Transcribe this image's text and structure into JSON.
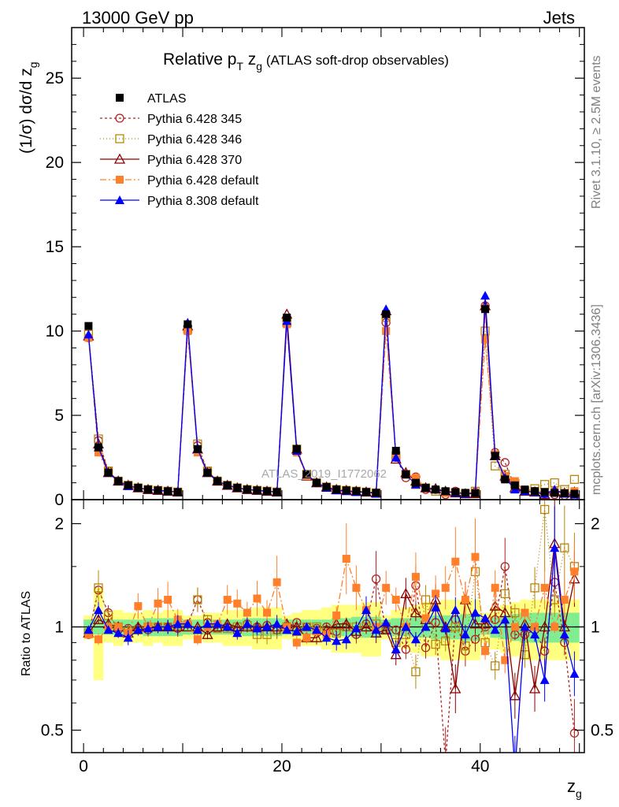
{
  "header": {
    "left": "13000 GeV pp",
    "right": "Jets"
  },
  "side_labels": {
    "top": "Rivet 3.1.10, ≥ 2.5M events",
    "bottom": "mcplots.cern.ch [arXiv:1306.3436]"
  },
  "chart_data": [
    {
      "type": "line",
      "title": "Relative p_T z_g (ATLAS soft-drop observables)",
      "title_main": "Relative p",
      "title_sub": "T",
      "title_var": " z",
      "title_var_sub": "g",
      "title_rest": " (ATLAS soft-drop observables)",
      "ylabel": "(1/σ) dσ/d z",
      "ylabel_sub": "g",
      "watermark": "ATLAS_2019_I1772062",
      "ylim": [
        0,
        28
      ],
      "xlim": [
        -1.2,
        50.5
      ],
      "x_ticks": [
        0,
        20,
        40
      ],
      "y_ticks": [
        0,
        5,
        10,
        15,
        20,
        25
      ],
      "y_tick_labels": [
        "0",
        "5",
        "10",
        "15",
        "20",
        "25"
      ],
      "legend_position": "top-left",
      "x": [
        0.5,
        1.5,
        2.5,
        3.5,
        4.5,
        5.5,
        6.5,
        7.5,
        8.5,
        9.5,
        10.5,
        11.5,
        12.5,
        13.5,
        14.5,
        15.5,
        16.5,
        17.5,
        18.5,
        19.5,
        20.5,
        21.5,
        22.5,
        23.5,
        24.5,
        25.5,
        26.5,
        27.5,
        28.5,
        29.5,
        30.5,
        31.5,
        32.5,
        33.5,
        34.5,
        35.5,
        36.5,
        37.5,
        38.5,
        39.5,
        40.5,
        41.5,
        42.5,
        43.5,
        44.5,
        45.5,
        46.5,
        47.5,
        48.5,
        49.5
      ],
      "series": [
        {
          "name": "ATLAS",
          "color": "#000000",
          "marker": "filled-square",
          "dash": "none",
          "values": [
            10.3,
            3.1,
            1.6,
            1.1,
            0.85,
            0.7,
            0.6,
            0.55,
            0.5,
            0.45,
            10.4,
            3.0,
            1.6,
            1.1,
            0.85,
            0.7,
            0.6,
            0.55,
            0.5,
            0.45,
            10.8,
            3.0,
            1.5,
            1.0,
            0.75,
            0.6,
            0.55,
            0.5,
            0.45,
            0.4,
            11.0,
            2.9,
            1.5,
            1.0,
            0.7,
            0.6,
            0.5,
            0.45,
            0.4,
            0.38,
            11.3,
            2.6,
            1.2,
            0.85,
            0.6,
            0.5,
            0.45,
            0.4,
            0.38,
            0.35
          ]
        },
        {
          "name": "Pythia 6.428 345",
          "color": "#b22222",
          "marker": "open-circle",
          "dash": "3,3",
          "values": [
            9.6,
            3.5,
            1.7,
            1.1,
            0.85,
            0.7,
            0.6,
            0.55,
            0.5,
            0.45,
            10.0,
            3.2,
            1.7,
            1.1,
            0.85,
            0.7,
            0.6,
            0.55,
            0.5,
            0.45,
            10.6,
            2.9,
            1.5,
            1.0,
            0.75,
            0.6,
            0.55,
            0.5,
            0.45,
            0.4,
            10.5,
            2.5,
            1.3,
            1.35,
            0.6,
            0.6,
            0.3,
            0.5,
            0.35,
            0.45,
            11.5,
            2.8,
            2.2,
            0.75,
            0.55,
            0.5,
            0.35,
            0.3,
            0.25,
            0.2
          ]
        },
        {
          "name": "Pythia 6.428 346",
          "color": "#b8860b",
          "marker": "open-square",
          "dash": "1,3",
          "values": [
            9.8,
            3.6,
            1.7,
            1.1,
            0.85,
            0.7,
            0.6,
            0.55,
            0.5,
            0.45,
            10.1,
            3.3,
            1.7,
            1.1,
            0.85,
            0.7,
            0.6,
            0.55,
            0.5,
            0.45,
            10.5,
            3.0,
            1.5,
            1.0,
            0.75,
            0.6,
            0.55,
            0.5,
            0.45,
            0.4,
            10.8,
            2.6,
            1.5,
            0.9,
            0.7,
            0.5,
            0.45,
            0.4,
            0.35,
            0.5,
            10.0,
            2.0,
            1.5,
            0.95,
            0.5,
            0.65,
            0.9,
            1.0,
            0.6,
            1.2
          ]
        },
        {
          "name": "Pythia 6.428 370",
          "color": "#8b0000",
          "marker": "open-triangle",
          "dash": "none",
          "values": [
            9.7,
            3.3,
            1.6,
            1.1,
            0.85,
            0.7,
            0.6,
            0.55,
            0.5,
            0.45,
            10.3,
            3.0,
            1.6,
            1.1,
            0.85,
            0.7,
            0.6,
            0.55,
            0.5,
            0.45,
            11.0,
            3.0,
            1.4,
            1.0,
            0.75,
            0.6,
            0.55,
            0.5,
            0.45,
            0.4,
            11.2,
            2.4,
            1.6,
            1.1,
            0.7,
            0.65,
            0.5,
            0.4,
            0.35,
            0.35,
            11.5,
            2.6,
            1.4,
            0.7,
            0.5,
            0.45,
            0.3,
            0.5,
            0.4,
            0.45
          ]
        },
        {
          "name": "Pythia 6.428 default",
          "color": "#ff7f2a",
          "marker": "filled-square",
          "dash": "8,3,2,3",
          "values": [
            9.6,
            2.8,
            1.6,
            1.1,
            0.85,
            0.7,
            0.6,
            0.55,
            0.5,
            0.45,
            10.0,
            2.8,
            1.6,
            1.1,
            0.85,
            0.7,
            0.6,
            0.55,
            0.5,
            0.45,
            10.4,
            2.8,
            1.4,
            1.0,
            0.75,
            0.6,
            0.55,
            0.5,
            0.45,
            0.4,
            10.0,
            2.5,
            1.5,
            1.3,
            0.7,
            0.6,
            0.4,
            0.4,
            0.4,
            0.4,
            9.5,
            2.7,
            1.4,
            1.1,
            0.5,
            0.5,
            0.45,
            0.5,
            0.4,
            0.5
          ]
        },
        {
          "name": "Pythia 8.308 default",
          "color": "#0000ff",
          "marker": "filled-triangle",
          "dash": "none",
          "values": [
            9.8,
            3.1,
            1.6,
            1.1,
            0.8,
            0.7,
            0.6,
            0.55,
            0.5,
            0.45,
            10.5,
            3.0,
            1.6,
            1.1,
            0.85,
            0.7,
            0.6,
            0.55,
            0.5,
            0.45,
            10.6,
            2.9,
            1.5,
            1.0,
            0.7,
            0.55,
            0.5,
            0.45,
            0.45,
            0.35,
            11.3,
            2.5,
            1.5,
            0.9,
            0.7,
            0.6,
            0.5,
            0.4,
            0.35,
            0.4,
            12.1,
            2.6,
            1.3,
            0.6,
            0.5,
            0.45,
            0.35,
            0.6,
            0.35,
            0.3
          ]
        }
      ]
    },
    {
      "type": "line",
      "ylabel": "Ratio to ATLAS",
      "xlabel": "z",
      "xlabel_sub": "g",
      "scale": "log",
      "ylim": [
        0.43,
        2.35
      ],
      "xlim": [
        -1.2,
        50.5
      ],
      "x_ticks": [
        0,
        20,
        40
      ],
      "y_ticks": [
        0.5,
        1,
        2
      ],
      "y_tick_labels": [
        "0.5",
        "1",
        "2"
      ],
      "band_inner": [
        0.05,
        0.05,
        0.05,
        0.05,
        0.05,
        0.05,
        0.06,
        0.06,
        0.06,
        0.06,
        0.05,
        0.05,
        0.05,
        0.05,
        0.05,
        0.05,
        0.06,
        0.06,
        0.06,
        0.06,
        0.05,
        0.05,
        0.05,
        0.05,
        0.05,
        0.06,
        0.06,
        0.07,
        0.07,
        0.07,
        0.05,
        0.06,
        0.06,
        0.07,
        0.07,
        0.08,
        0.08,
        0.08,
        0.09,
        0.09,
        0.05,
        0.07,
        0.08,
        0.09,
        0.1,
        0.1,
        0.1,
        0.1,
        0.1,
        0.1
      ],
      "band_outer": [
        0.08,
        0.3,
        0.1,
        0.12,
        0.1,
        0.1,
        0.12,
        0.1,
        0.12,
        0.12,
        0.08,
        0.08,
        0.1,
        0.1,
        0.12,
        0.12,
        0.12,
        0.14,
        0.14,
        0.14,
        0.08,
        0.1,
        0.12,
        0.12,
        0.14,
        0.16,
        0.16,
        0.16,
        0.18,
        0.18,
        0.08,
        0.12,
        0.14,
        0.16,
        0.18,
        0.18,
        0.2,
        0.2,
        0.2,
        0.2,
        0.1,
        0.14,
        0.16,
        0.18,
        0.2,
        0.2,
        0.2,
        0.2,
        0.2,
        0.2
      ],
      "series": [
        {
          "name": "Pythia 6.428 345",
          "color": "#b22222",
          "marker": "open-circle",
          "dash": "3,3",
          "values": [
            0.95,
            1.28,
            1.1,
            0.98,
            0.99,
            0.99,
            0.98,
            1.0,
            1.0,
            0.99,
            1.02,
            1.2,
            1.03,
            0.99,
            1.0,
            0.97,
            1.02,
            1.0,
            1.01,
            0.98,
            1.0,
            1.03,
            1.0,
            0.99,
            1.0,
            0.97,
            1.0,
            0.95,
            1.02,
            1.38,
            0.98,
            0.98,
            0.86,
            1.32,
            0.87,
            1.03,
            0.4,
            1.05,
            0.85,
            0.92,
            1.0,
            1.05,
            1.5,
            0.95,
            0.95,
            0.98,
            0.85,
            1.35,
            0.9,
            0.49
          ]
        },
        {
          "name": "Pythia 6.428 346",
          "color": "#b8860b",
          "marker": "open-square",
          "dash": "1,3",
          "values": [
            0.96,
            1.3,
            1.08,
            1.0,
            0.97,
            0.98,
            1.0,
            1.0,
            1.0,
            1.01,
            1.0,
            1.2,
            1.05,
            0.99,
            0.99,
            1.0,
            1.01,
            0.95,
            0.95,
            0.98,
            1.0,
            0.97,
            1.0,
            1.0,
            0.98,
            0.96,
            1.0,
            1.0,
            1.0,
            1.02,
            1.0,
            0.9,
            0.95,
            0.74,
            1.2,
            0.89,
            0.91,
            1.0,
            0.88,
            1.45,
            0.9,
            0.77,
            1.25,
            1.1,
            0.83,
            1.3,
            2.2,
            1.2,
            1.7,
            1.5
          ]
        },
        {
          "name": "Pythia 6.428 370",
          "color": "#8b0000",
          "marker": "open-triangle",
          "dash": "none",
          "values": [
            0.96,
            1.05,
            1.02,
            1.0,
            0.96,
            1.0,
            1.0,
            1.0,
            1.0,
            1.0,
            1.0,
            1.0,
            0.95,
            1.0,
            1.02,
            1.0,
            1.0,
            1.0,
            1.0,
            1.0,
            1.02,
            1.0,
            0.93,
            0.93,
            0.98,
            1.02,
            1.02,
            0.97,
            1.0,
            0.96,
            0.98,
            0.83,
            1.25,
            1.1,
            1.05,
            1.2,
            1.0,
            0.66,
            1.2,
            1.02,
            1.02,
            1.15,
            1.1,
            0.63,
            1.02,
            0.66,
            1.0,
            1.75,
            1.0,
            1.38
          ]
        },
        {
          "name": "Pythia 6.428 default",
          "color": "#ff7f2a",
          "marker": "filled-square",
          "dash": "8,3,2,3",
          "values": [
            0.95,
            0.92,
            1.0,
            1.0,
            0.96,
            1.15,
            1.0,
            1.17,
            1.2,
            1.05,
            1.02,
            0.92,
            1.0,
            1.02,
            1.2,
            1.17,
            1.1,
            1.21,
            1.1,
            1.35,
            1.0,
            0.9,
            0.93,
            0.97,
            0.95,
            1.08,
            1.58,
            1.3,
            1.12,
            1.0,
            1.3,
            1.2,
            1.0,
            1.4,
            1.06,
            1.25,
            1.3,
            1.55,
            1.2,
            1.6,
            0.85,
            1.3,
            0.8,
            1.0,
            1.1,
            1.0,
            1.3,
            1.0,
            1.2,
            1.45
          ]
        },
        {
          "name": "Pythia 8.308 default",
          "color": "#0000ff",
          "marker": "filled-triangle",
          "dash": "none",
          "values": [
            0.98,
            1.12,
            0.98,
            0.96,
            0.93,
            0.98,
            0.99,
            1.0,
            1.0,
            1.02,
            1.02,
            0.98,
            1.02,
            1.02,
            1.0,
            0.96,
            1.02,
            0.99,
            1.0,
            1.02,
            0.98,
            0.97,
            1.0,
            0.98,
            0.93,
            0.91,
            0.92,
            0.99,
            1.12,
            0.98,
            1.03,
            0.86,
            1.0,
            0.92,
            1.0,
            1.14,
            0.99,
            1.12,
            0.95,
            1.1,
            1.06,
            0.98,
            1.05,
            0.38,
            1.0,
            0.95,
            0.7,
            1.7,
            0.95,
            0.73
          ]
        }
      ]
    }
  ]
}
